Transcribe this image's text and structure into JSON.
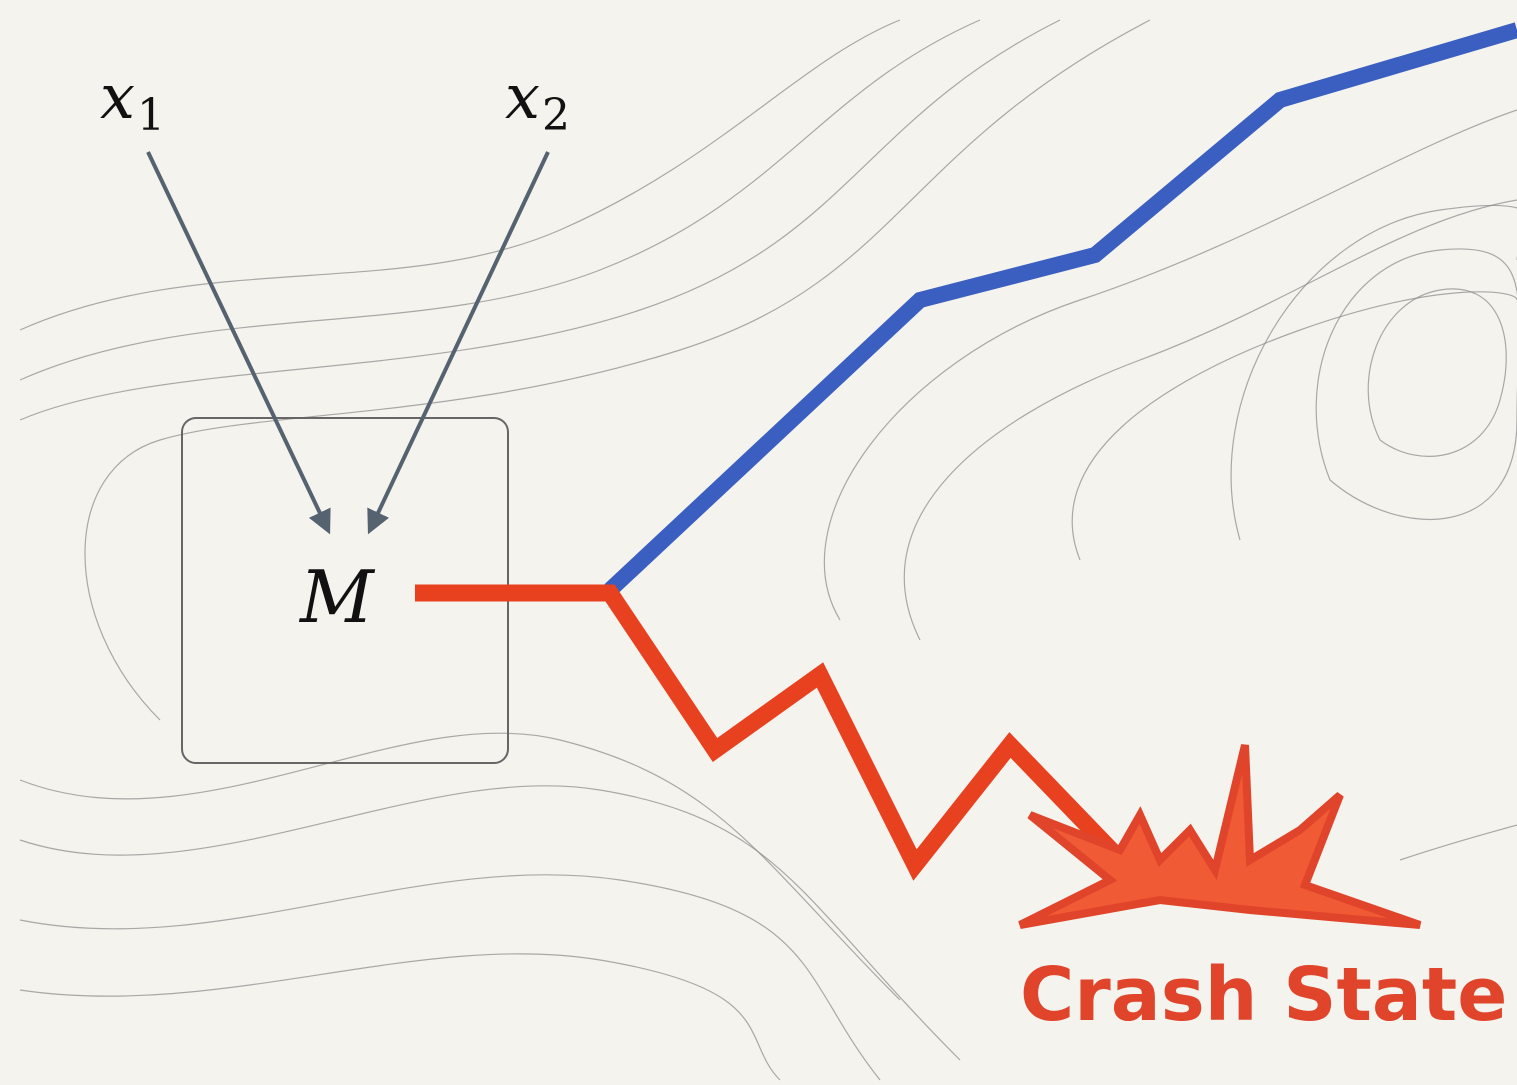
{
  "nodes": [
    {
      "label": "x",
      "sub": "1"
    },
    {
      "label": "x",
      "sub": "2"
    },
    {
      "label": "M"
    }
  ],
  "annotation": "Crash State"
}
